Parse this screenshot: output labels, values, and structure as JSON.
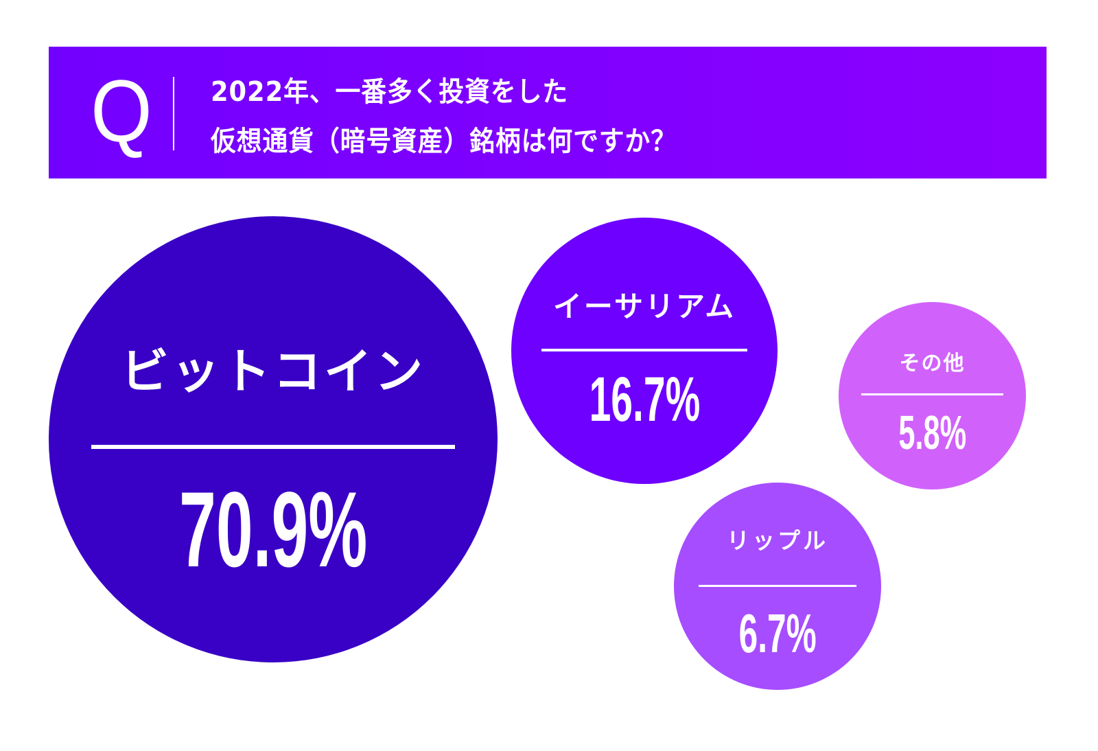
{
  "header": {
    "q_label": "Q",
    "question_line1": "2022年、一番多く投資をした",
    "question_line2": "仮想通貨（暗号資産）銘柄は何ですか？",
    "background_gradient": [
      "#7200ff",
      "#8c00ff"
    ]
  },
  "bubbles": [
    {
      "label": "ビットコイン",
      "value": "70.9%",
      "color": "#3900c6"
    },
    {
      "label": "イーサリアム",
      "value": "16.7%",
      "color": "#6d00ff"
    },
    {
      "label": "その他",
      "value": "5.8%",
      "color": "#d062fb"
    },
    {
      "label": "リップル",
      "value": "6.7%",
      "color": "#a64dff"
    }
  ],
  "chart_data": {
    "type": "bubble",
    "title": "2022年、一番多く投資をした仮想通貨（暗号資産）銘柄は何ですか？",
    "categories": [
      "ビットコイン",
      "イーサリアム",
      "リップル",
      "その他"
    ],
    "values": [
      70.9,
      16.7,
      6.7,
      5.8
    ],
    "unit": "%",
    "colors": [
      "#3900c6",
      "#6d00ff",
      "#a64dff",
      "#d062fb"
    ],
    "legend": "none",
    "grid": false
  }
}
